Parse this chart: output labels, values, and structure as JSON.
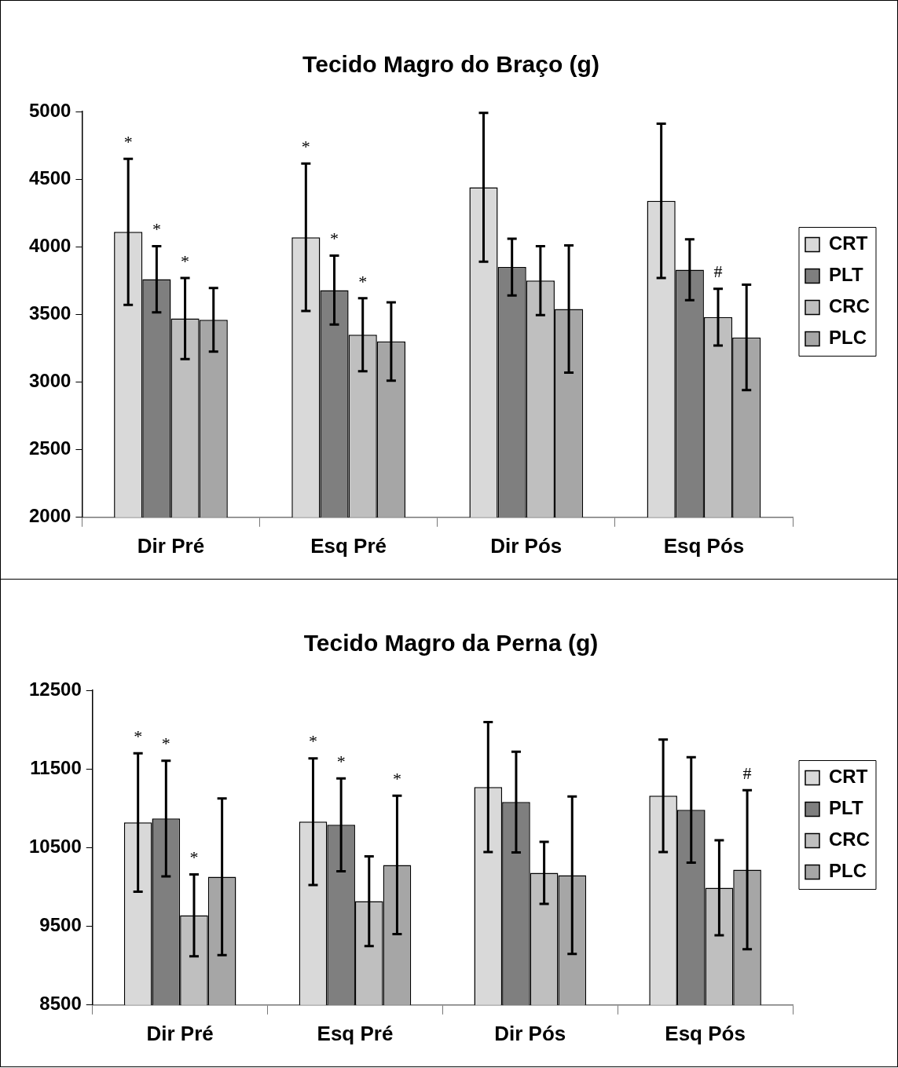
{
  "chart_data": [
    {
      "type": "bar",
      "title": "Tecido Magro do Braço (g)",
      "categories": [
        "Dir Pré",
        "Esq Pré",
        "Dir Pós",
        "Esq Pós"
      ],
      "ylim": [
        2000,
        5000
      ],
      "yticks": [
        2000,
        2500,
        3000,
        3500,
        4000,
        4500,
        5000
      ],
      "grid": false,
      "legend": "right",
      "series": [
        {
          "name": "CRT",
          "color": "#d9d9d9",
          "values": [
            4110,
            4070,
            4440,
            4340
          ],
          "errors": [
            540,
            545,
            550,
            570
          ]
        },
        {
          "name": "PLT",
          "color": "#7f7f7f",
          "values": [
            3760,
            3680,
            3850,
            3830
          ],
          "errors": [
            245,
            255,
            210,
            225
          ]
        },
        {
          "name": "CRC",
          "color": "#bfbfbf",
          "values": [
            3470,
            3350,
            3750,
            3480
          ],
          "errors": [
            300,
            270,
            255,
            210
          ]
        },
        {
          "name": "PLC",
          "color": "#a6a6a6",
          "values": [
            3460,
            3300,
            3540,
            3330
          ],
          "errors": [
            235,
            290,
            470,
            390
          ]
        }
      ],
      "annotations": [
        "*",
        "*",
        "*",
        "*",
        "*",
        "*",
        "#"
      ]
    },
    {
      "type": "bar",
      "title": "Tecido Magro da Perna (g)",
      "categories": [
        "Dir Pré",
        "Esq Pré",
        "Dir Pós",
        "Esq Pós"
      ],
      "ylim": [
        8500,
        12500
      ],
      "yticks": [
        8500,
        9500,
        10500,
        11500,
        12500
      ],
      "grid": false,
      "legend": "right",
      "series": [
        {
          "name": "CRT",
          "color": "#d9d9d9",
          "values": [
            10820,
            10830,
            11270,
            11160
          ],
          "errors": [
            880,
            805,
            825,
            715
          ]
        },
        {
          "name": "PLT",
          "color": "#7f7f7f",
          "values": [
            10870,
            10790,
            11080,
            10980
          ],
          "errors": [
            735,
            590,
            640,
            670
          ]
        },
        {
          "name": "CRC",
          "color": "#bfbfbf",
          "values": [
            9640,
            9820,
            10180,
            9990
          ],
          "errors": [
            520,
            570,
            395,
            605
          ]
        },
        {
          "name": "PLC",
          "color": "#a6a6a6",
          "values": [
            10130,
            10280,
            10150,
            10220
          ],
          "errors": [
            995,
            880,
            1000,
            1010
          ]
        }
      ],
      "annotations": [
        "*",
        "*",
        "*",
        "*",
        "*",
        "*",
        "#"
      ]
    }
  ]
}
